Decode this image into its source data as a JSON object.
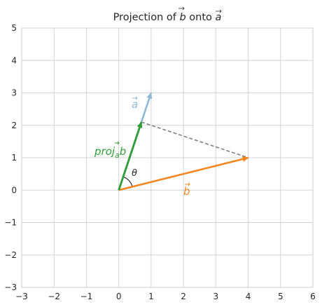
{
  "chart_data": {
    "type": "line",
    "title": "Projection of b⃗ onto a⃗",
    "title_parts": {
      "prefix": "Projection of ",
      "b": "b",
      "middle": " onto ",
      "a": "a"
    },
    "xlim": [
      -3,
      6
    ],
    "ylim": [
      -3,
      5
    ],
    "x_ticks": [
      -3,
      -2,
      -1,
      0,
      1,
      2,
      3,
      4,
      5,
      6
    ],
    "y_ticks": [
      -3,
      -2,
      -1,
      0,
      1,
      2,
      3,
      4,
      5
    ],
    "x_tick_labels": [
      "−3",
      "−2",
      "−1",
      "0",
      "1",
      "2",
      "3",
      "4",
      "5",
      "6"
    ],
    "y_tick_labels": [
      "−3",
      "−2",
      "−1",
      "0",
      "1",
      "2",
      "3",
      "4",
      "5"
    ],
    "grid": true,
    "vectors": [
      {
        "name": "a",
        "label": "a",
        "start": [
          0,
          0
        ],
        "end": [
          1,
          3
        ],
        "color": "#8db9d9"
      },
      {
        "name": "b",
        "label": "b",
        "start": [
          0,
          0
        ],
        "end": [
          4,
          1
        ],
        "color": "#f5861f"
      },
      {
        "name": "proj",
        "label_main": "proj",
        "label_sub": "a",
        "label_tail": "b",
        "start": [
          0,
          0
        ],
        "end": [
          0.7,
          2.1
        ],
        "color": "#2f9e36"
      }
    ],
    "perpendicular": {
      "from": [
        0.7,
        2.1
      ],
      "to": [
        4,
        1
      ],
      "color": "#808080",
      "style": "dashed"
    },
    "angle": {
      "label": "θ"
    }
  }
}
